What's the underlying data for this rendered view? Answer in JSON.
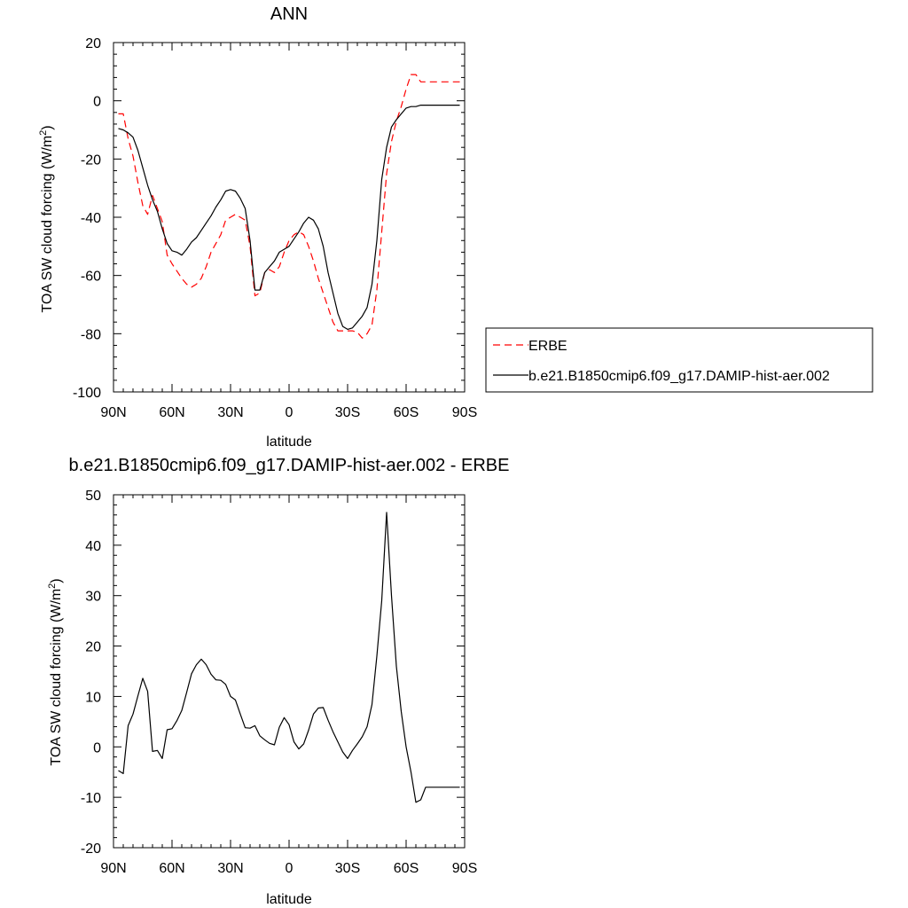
{
  "chart_data": [
    {
      "type": "line",
      "title": "ANN",
      "xlabel": "latitude",
      "ylabel": "TOA SW cloud forcing (W/m",
      "ylabel_sup": "2",
      "ylabel_tail": ")",
      "xlim": [
        90,
        -90
      ],
      "ylim": [
        -100,
        20
      ],
      "x_tick_values": [
        90,
        60,
        30,
        0,
        -30,
        -60,
        -90
      ],
      "x_tick_labels": [
        "90N",
        "60N",
        "30N",
        "0",
        "30S",
        "60S",
        "90S"
      ],
      "y_tick_values": [
        20,
        0,
        -20,
        -40,
        -60,
        -80,
        -100
      ],
      "y_tick_labels": [
        "20",
        "0",
        "-20",
        "-40",
        "-60",
        "-80",
        "-100"
      ],
      "legend_position": "right",
      "series": [
        {
          "name": "ERBE",
          "color": "#ff0000",
          "dash": "dashed",
          "x": [
            87.5,
            85,
            82.5,
            80,
            77.5,
            75,
            72.5,
            70,
            67.5,
            65,
            62.5,
            60,
            57.5,
            55,
            52.5,
            50,
            47.5,
            45,
            42.5,
            40,
            37.5,
            35,
            32.5,
            30,
            27.5,
            25,
            22.5,
            20,
            17.5,
            15,
            12.5,
            10,
            7.5,
            5,
            2.5,
            0,
            -2.5,
            -5,
            -7.5,
            -10,
            -12.5,
            -15,
            -17.5,
            -20,
            -22.5,
            -25,
            -27.5,
            -30,
            -32.5,
            -35,
            -37.5,
            -40,
            -42.5,
            -45,
            -47.5,
            -50,
            -52.5,
            -55,
            -57.5,
            -60,
            -62.5,
            -65,
            -67.5,
            -70,
            -72.5,
            -75,
            -77.5,
            -80,
            -82.5,
            -85,
            -87.5
          ],
          "y": [
            -4.5,
            -4.5,
            -13,
            -19,
            -28,
            -36,
            -39,
            -32.5,
            -37,
            -41.5,
            -53,
            -56,
            -58.5,
            -61,
            -63,
            -64,
            -63,
            -61,
            -57,
            -52,
            -49,
            -46,
            -41,
            -40,
            -39,
            -40,
            -41,
            -50,
            -67,
            -66,
            -59,
            -58,
            -59,
            -57,
            -52,
            -48,
            -46,
            -45,
            -46,
            -50,
            -55,
            -61,
            -66,
            -71,
            -76,
            -79,
            -79,
            -79,
            -79,
            -79.5,
            -81.5,
            -80,
            -77,
            -65,
            -45,
            -25,
            -14,
            -7,
            -2,
            4,
            9,
            9,
            6.5,
            6.5,
            6.5,
            6.5,
            6.5,
            6.5,
            6.5,
            6.5,
            6.5
          ]
        },
        {
          "name": "b.e21.B1850cmip6.f09_g17.DAMIP-hist-aer.002",
          "color": "#000000",
          "dash": "solid",
          "x": [
            87.5,
            85,
            82.5,
            80,
            77.5,
            75,
            72.5,
            70,
            67.5,
            65,
            62.5,
            60,
            57.5,
            55,
            52.5,
            50,
            47.5,
            45,
            42.5,
            40,
            37.5,
            35,
            32.5,
            30,
            27.5,
            25,
            22.5,
            20,
            17.5,
            15,
            12.5,
            10,
            7.5,
            5,
            2.5,
            0,
            -2.5,
            -5,
            -7.5,
            -10,
            -12.5,
            -15,
            -17.5,
            -20,
            -22.5,
            -25,
            -27.5,
            -30,
            -32.5,
            -35,
            -37.5,
            -40,
            -42.5,
            -45,
            -47.5,
            -50,
            -52.5,
            -55,
            -57.5,
            -60,
            -62.5,
            -65,
            -67.5,
            -70,
            -72.5,
            -75,
            -77.5,
            -80,
            -82.5,
            -85,
            -87.5
          ],
          "y": [
            -9.5,
            -10,
            -11,
            -12.5,
            -17,
            -23,
            -29,
            -34,
            -38,
            -44,
            -49,
            -51.5,
            -52,
            -53,
            -51,
            -48.5,
            -47,
            -44.5,
            -42,
            -39.5,
            -36.5,
            -34,
            -31,
            -30.5,
            -31,
            -33.5,
            -37,
            -48,
            -65,
            -65,
            -59,
            -57,
            -55,
            -52,
            -51,
            -50,
            -47.5,
            -45,
            -42,
            -40,
            -41,
            -44,
            -50,
            -59,
            -66,
            -73,
            -77.5,
            -78.5,
            -78,
            -76,
            -74,
            -71,
            -63,
            -48,
            -27,
            -16,
            -9,
            -6.5,
            -4.5,
            -2.5,
            -2,
            -2,
            -1.5,
            -1.5,
            -1.5,
            -1.5,
            -1.5,
            -1.5,
            -1.5,
            -1.5,
            -1.5
          ]
        }
      ]
    },
    {
      "type": "line",
      "title": "b.e21.B1850cmip6.f09_g17.DAMIP-hist-aer.002 - ERBE",
      "xlabel": "latitude",
      "ylabel": "TOA SW cloud forcing (W/m",
      "ylabel_sup": "2",
      "ylabel_tail": ")",
      "xlim": [
        90,
        -90
      ],
      "ylim": [
        -20,
        50
      ],
      "x_tick_values": [
        90,
        60,
        30,
        0,
        -30,
        -60,
        -90
      ],
      "x_tick_labels": [
        "90N",
        "60N",
        "30N",
        "0",
        "30S",
        "60S",
        "90S"
      ],
      "y_tick_values": [
        50,
        40,
        30,
        20,
        10,
        0,
        -10,
        -20
      ],
      "y_tick_labels": [
        "50",
        "40",
        "30",
        "20",
        "10",
        "0",
        "-10",
        "-20"
      ],
      "series": [
        {
          "color": "#000000",
          "dash": "solid",
          "x": [
            87.5,
            85,
            82.5,
            80,
            77.5,
            75,
            72.5,
            70,
            67.5,
            65,
            62.5,
            60,
            57.5,
            55,
            52.5,
            50,
            47.5,
            45,
            42.5,
            40,
            37.5,
            35,
            32.5,
            30,
            27.5,
            25,
            22.5,
            20,
            17.5,
            15,
            12.5,
            10,
            7.5,
            5,
            2.5,
            0,
            -2.5,
            -5,
            -7.5,
            -10,
            -12.5,
            -15,
            -17.5,
            -20,
            -22.5,
            -25,
            -27.5,
            -30,
            -32.5,
            -35,
            -37.5,
            -40,
            -42.5,
            -45,
            -47.5,
            -50,
            -52.5,
            -55,
            -57.5,
            -60,
            -62.5,
            -65,
            -67.5,
            -70,
            -72.5,
            -75,
            -77.5,
            -80,
            -82.5,
            -85,
            -87.5
          ],
          "y": [
            -4.7,
            -5.3,
            4.2,
            6.5,
            10.1,
            13.6,
            11.0,
            -0.9,
            -0.7,
            -2.3,
            3.4,
            3.6,
            5.2,
            7.2,
            10.8,
            14.5,
            16.3,
            17.4,
            16.3,
            14.4,
            13.3,
            13.2,
            12.4,
            10.0,
            9.3,
            6.5,
            3.8,
            3.7,
            4.2,
            2.2,
            1.4,
            0.7,
            0.4,
            3.9,
            5.8,
            4.4,
            1.0,
            -0.4,
            0.6,
            3.3,
            6.5,
            7.7,
            7.8,
            5.3,
            3.0,
            1.0,
            -1.0,
            -2.3,
            -0.7,
            0.6,
            2.0,
            4.0,
            8.4,
            18.0,
            29.0,
            46.5,
            30.0,
            16.0,
            7.0,
            0.0,
            -5.0,
            -11.0,
            -10.5,
            -8.0,
            -8.0,
            -8.0,
            -8.0,
            -8.0,
            -8.0,
            -8.0,
            -8.0
          ]
        }
      ]
    }
  ]
}
